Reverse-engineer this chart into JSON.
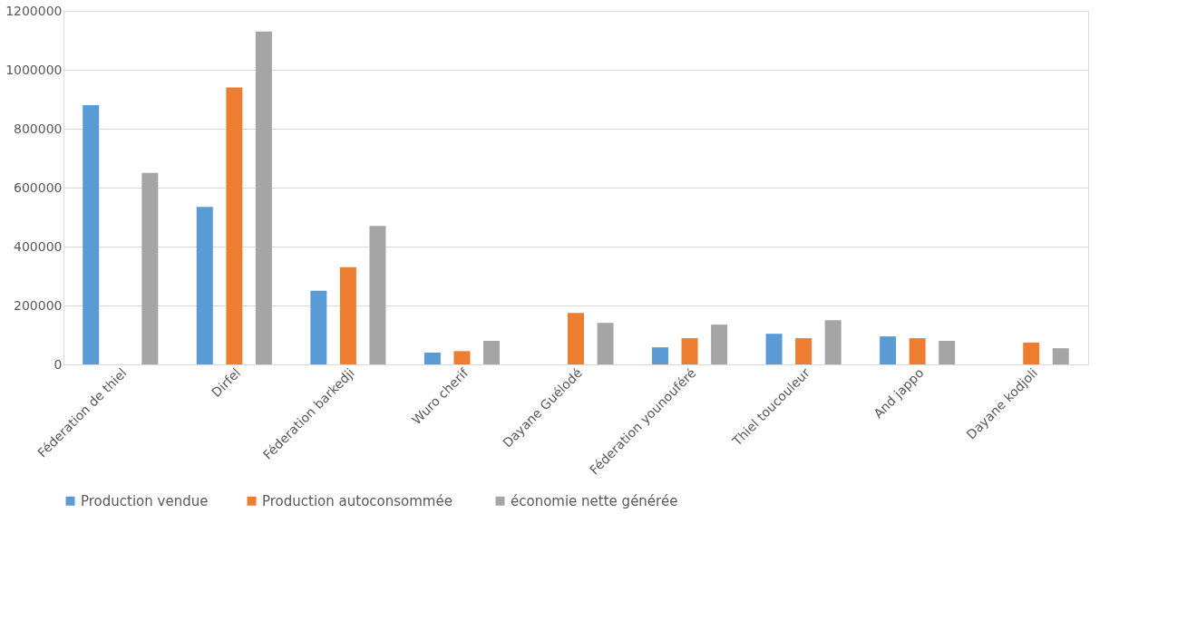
{
  "chart_data": {
    "type": "bar",
    "categories": [
      "Féderation de thiel",
      "Dirfel",
      "Féderation barkedji",
      "Wuro cherif",
      "Dayane Guélodé",
      "Féderation younouféré",
      "Thiel toucouleur",
      "And jappo",
      "Dayane kodjoli"
    ],
    "series": [
      {
        "name": "Production vendue",
        "color": "#5b9bd5",
        "values": [
          880000,
          535000,
          250000,
          40000,
          null,
          58000,
          104000,
          95000,
          null
        ]
      },
      {
        "name": "Production  autoconsommée",
        "color": "#ed7d31",
        "values": [
          null,
          940000,
          330000,
          45000,
          175000,
          89000,
          89000,
          89000,
          74000
        ]
      },
      {
        "name": "économie nette  générée",
        "color": "#a5a5a5",
        "values": [
          650000,
          1130000,
          470000,
          80000,
          141000,
          135000,
          150000,
          80000,
          55000
        ]
      }
    ],
    "ylim": [
      0,
      1200000
    ],
    "yticks": [
      0,
      200000,
      400000,
      600000,
      800000,
      1000000,
      1200000
    ],
    "grid": "y",
    "legend": "bottom"
  }
}
